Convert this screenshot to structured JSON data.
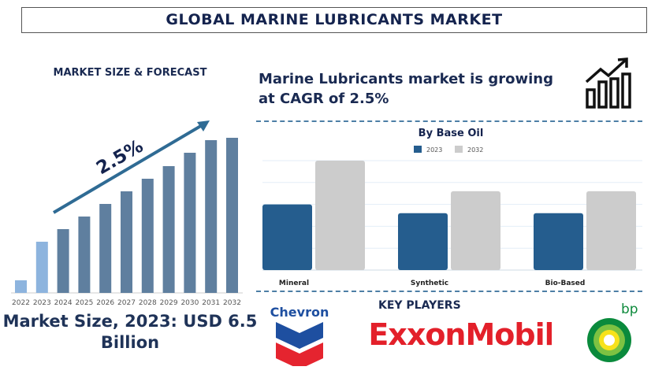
{
  "title": "GLOBAL MARINE LUBRICANTS MARKET",
  "left": {
    "heading": "MARKET SIZE & FORECAST",
    "market_size": "Market Size, 2023: USD 6.5 Billion"
  },
  "cagr_text": "Marine Lubricants market is growing at CAGR of 2.5%",
  "key_players": {
    "heading": "KEY PLAYERS",
    "logos": [
      "Chevron",
      "ExxonMobil",
      "bp"
    ]
  },
  "chart_data": [
    {
      "type": "bar",
      "categories": [
        "2022",
        "2023",
        "2024",
        "2025",
        "2026",
        "2027",
        "2028",
        "2029",
        "2030",
        "2031",
        "2032"
      ],
      "values": [
        16,
        65,
        81,
        97,
        113,
        129,
        145,
        161,
        178,
        194,
        197
      ],
      "annotation": "2.5%",
      "colors": {
        "history": "#8db4de",
        "forecast": "#5f7f9f"
      }
    },
    {
      "type": "bar",
      "title": "By Base Oil",
      "categories": [
        "Mineral",
        "Synthetic",
        "Bio-Based"
      ],
      "series": [
        {
          "name": "2023",
          "values": [
            3,
            2.6,
            2.6
          ],
          "color": "#255d8e"
        },
        {
          "name": "2032",
          "values": [
            5,
            3.6,
            3.6
          ],
          "color": "#cccccc"
        }
      ],
      "ylim": [
        0,
        5
      ],
      "grid": true,
      "legend": "top"
    }
  ]
}
